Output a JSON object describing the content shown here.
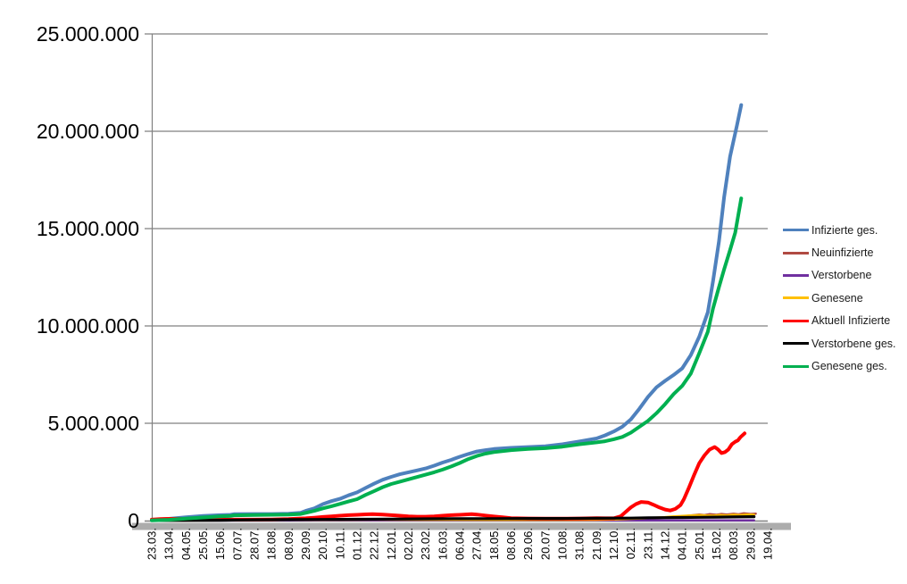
{
  "chart_data": {
    "type": "line",
    "title": "",
    "grid": true,
    "legend_position": "right",
    "x_axis": {
      "labels": [
        "23.03.",
        "13.04.",
        "04.05.",
        "25.05.",
        "15.06.",
        "07.07.",
        "28.07.",
        "18.08.",
        "08.09.",
        "29.09.",
        "20.10.",
        "10.11.",
        "01.12.",
        "22.12.",
        "12.01.",
        "02.02.",
        "23.02.",
        "16.03.",
        "06.04.",
        "27.04.",
        "18.05.",
        "08.06.",
        "29.06.",
        "20.07.",
        "10.08.",
        "31.08.",
        "21.09.",
        "12.10.",
        "02.11.",
        "23.11.",
        "14.12.",
        "04.01.",
        "25.01.",
        "15.02.",
        "08.03.",
        "29.03.",
        "19.04."
      ],
      "label_rotation_deg": 90
    },
    "y_axis": {
      "labels": [
        "0",
        "5.000.000",
        "10.000.000",
        "15.000.000",
        "20.000.000",
        "25.000.000"
      ],
      "min": 0,
      "max": 25000000,
      "gridline_step": 5000000
    },
    "units": "point values are [tick_index, millions]",
    "colors": {
      "gridline": "#808080",
      "axis_shadow_bar": "#ACACAC",
      "axis_text": "#000000"
    },
    "series": [
      {
        "name": "Infizierte ges.",
        "color": "#4F81BD",
        "width": 4,
        "points": [
          [
            0,
            0.03
          ],
          [
            1,
            0.09
          ],
          [
            2,
            0.17
          ],
          [
            3,
            0.24
          ],
          [
            4,
            0.28
          ],
          [
            4.6,
            0.3
          ],
          [
            4.8,
            0.33
          ],
          [
            6,
            0.34
          ],
          [
            7,
            0.34
          ],
          [
            8,
            0.36
          ],
          [
            8.7,
            0.4
          ],
          [
            9,
            0.5
          ],
          [
            9.5,
            0.63
          ],
          [
            10,
            0.85
          ],
          [
            10.5,
            1.0
          ],
          [
            11,
            1.12
          ],
          [
            11.5,
            1.3
          ],
          [
            12,
            1.45
          ],
          [
            12.5,
            1.68
          ],
          [
            13,
            1.9
          ],
          [
            13.5,
            2.1
          ],
          [
            14,
            2.25
          ],
          [
            14.5,
            2.38
          ],
          [
            15,
            2.48
          ],
          [
            15.5,
            2.58
          ],
          [
            16,
            2.68
          ],
          [
            16.5,
            2.82
          ],
          [
            17,
            2.98
          ],
          [
            17.5,
            3.12
          ],
          [
            18,
            3.28
          ],
          [
            18.5,
            3.42
          ],
          [
            19,
            3.55
          ],
          [
            19.5,
            3.62
          ],
          [
            20,
            3.68
          ],
          [
            21,
            3.74
          ],
          [
            22,
            3.78
          ],
          [
            23,
            3.82
          ],
          [
            24,
            3.92
          ],
          [
            25,
            4.07
          ],
          [
            26,
            4.22
          ],
          [
            26.5,
            4.38
          ],
          [
            27,
            4.58
          ],
          [
            27.5,
            4.82
          ],
          [
            28,
            5.2
          ],
          [
            28.5,
            5.75
          ],
          [
            29,
            6.35
          ],
          [
            29.5,
            6.85
          ],
          [
            30,
            7.18
          ],
          [
            30.5,
            7.48
          ],
          [
            31,
            7.82
          ],
          [
            31.5,
            8.5
          ],
          [
            32,
            9.45
          ],
          [
            32.5,
            10.7
          ],
          [
            32.8,
            12.3
          ],
          [
            33.15,
            14.35
          ],
          [
            33.45,
            16.6
          ],
          [
            33.8,
            18.7
          ],
          [
            34.2,
            20.3
          ],
          [
            34.45,
            21.35
          ]
        ]
      },
      {
        "name": "Neuinfizierte",
        "color": "#B04A42",
        "width": 2.5,
        "points": [
          [
            0,
            0.02
          ],
          [
            1,
            0.03
          ],
          [
            2,
            0.02
          ],
          [
            4,
            0.01
          ],
          [
            8,
            0.03
          ],
          [
            11,
            0.04
          ],
          [
            13,
            0.05
          ],
          [
            16,
            0.04
          ],
          [
            20,
            0.02
          ],
          [
            24,
            0.03
          ],
          [
            26,
            0.03
          ],
          [
            27,
            0.06
          ],
          [
            28,
            0.1
          ],
          [
            29,
            0.12
          ],
          [
            30,
            0.15
          ],
          [
            30.5,
            0.19
          ],
          [
            31,
            0.22
          ],
          [
            31.5,
            0.26
          ],
          [
            32,
            0.31
          ],
          [
            32.3,
            0.28
          ],
          [
            32.6,
            0.33
          ],
          [
            33,
            0.3
          ],
          [
            33.3,
            0.34
          ],
          [
            33.6,
            0.31
          ],
          [
            34,
            0.35
          ],
          [
            34.3,
            0.32
          ],
          [
            34.6,
            0.37
          ],
          [
            35,
            0.34
          ],
          [
            35.3,
            0.36
          ]
        ]
      },
      {
        "name": "Verstorbene",
        "color": "#7030A0",
        "width": 2.5,
        "points": [
          [
            0,
            0.005
          ],
          [
            10,
            0.007
          ],
          [
            20,
            0.008
          ],
          [
            30,
            0.01
          ],
          [
            35.2,
            0.012
          ]
        ]
      },
      {
        "name": "Genesene",
        "color": "#FFC000",
        "width": 2.5,
        "points": [
          [
            0,
            0.0
          ],
          [
            4,
            0.01
          ],
          [
            8,
            0.03
          ],
          [
            11,
            0.04
          ],
          [
            13,
            0.05
          ],
          [
            16,
            0.04
          ],
          [
            20,
            0.03
          ],
          [
            24,
            0.03
          ],
          [
            26,
            0.04
          ],
          [
            27,
            0.06
          ],
          [
            28,
            0.09
          ],
          [
            29,
            0.13
          ],
          [
            30,
            0.18
          ],
          [
            30.5,
            0.22
          ],
          [
            31,
            0.24
          ],
          [
            31.5,
            0.26
          ],
          [
            32,
            0.28
          ],
          [
            32.4,
            0.26
          ],
          [
            32.8,
            0.25
          ],
          [
            33.2,
            0.28
          ],
          [
            33.6,
            0.26
          ],
          [
            34,
            0.3
          ],
          [
            34.4,
            0.28
          ],
          [
            34.8,
            0.31
          ],
          [
            35.2,
            0.3
          ]
        ]
      },
      {
        "name": "Aktuell Infizierte",
        "color": "#FF0000",
        "width": 4,
        "points": [
          [
            0,
            0.05
          ],
          [
            0.5,
            0.08
          ],
          [
            1,
            0.09
          ],
          [
            2,
            0.08
          ],
          [
            3,
            0.06
          ],
          [
            4,
            0.05
          ],
          [
            5,
            0.05
          ],
          [
            6,
            0.05
          ],
          [
            7,
            0.06
          ],
          [
            8,
            0.08
          ],
          [
            9,
            0.12
          ],
          [
            9.5,
            0.15
          ],
          [
            10,
            0.19
          ],
          [
            10.5,
            0.22
          ],
          [
            11,
            0.25
          ],
          [
            11.5,
            0.28
          ],
          [
            12,
            0.3
          ],
          [
            12.5,
            0.32
          ],
          [
            12.9,
            0.33
          ],
          [
            13.5,
            0.31
          ],
          [
            14,
            0.28
          ],
          [
            14.5,
            0.25
          ],
          [
            15,
            0.22
          ],
          [
            15.5,
            0.2
          ],
          [
            16,
            0.2
          ],
          [
            16.5,
            0.22
          ],
          [
            17,
            0.25
          ],
          [
            17.5,
            0.28
          ],
          [
            18,
            0.3
          ],
          [
            18.7,
            0.33
          ],
          [
            19,
            0.31
          ],
          [
            19.5,
            0.26
          ],
          [
            20,
            0.21
          ],
          [
            20.5,
            0.17
          ],
          [
            21,
            0.13
          ],
          [
            22,
            0.11
          ],
          [
            23,
            0.1
          ],
          [
            24,
            0.1
          ],
          [
            25,
            0.11
          ],
          [
            26,
            0.13
          ],
          [
            26.5,
            0.12
          ],
          [
            27,
            0.12
          ],
          [
            27.4,
            0.22
          ],
          [
            27.7,
            0.45
          ],
          [
            28,
            0.68
          ],
          [
            28.3,
            0.85
          ],
          [
            28.6,
            0.96
          ],
          [
            29,
            0.93
          ],
          [
            29.3,
            0.82
          ],
          [
            29.6,
            0.7
          ],
          [
            30,
            0.57
          ],
          [
            30.3,
            0.52
          ],
          [
            30.6,
            0.6
          ],
          [
            30.9,
            0.8
          ],
          [
            31.1,
            1.1
          ],
          [
            31.4,
            1.7
          ],
          [
            31.7,
            2.35
          ],
          [
            32,
            2.95
          ],
          [
            32.3,
            3.35
          ],
          [
            32.6,
            3.65
          ],
          [
            32.9,
            3.78
          ],
          [
            33.1,
            3.65
          ],
          [
            33.3,
            3.47
          ],
          [
            33.5,
            3.52
          ],
          [
            33.7,
            3.65
          ],
          [
            33.9,
            3.92
          ],
          [
            34.1,
            4.05
          ],
          [
            34.25,
            4.12
          ],
          [
            34.4,
            4.28
          ],
          [
            34.65,
            4.48
          ]
        ]
      },
      {
        "name": "Verstorbene ges.",
        "color": "#000000",
        "width": 3.2,
        "points": [
          [
            0,
            0.005
          ],
          [
            2,
            0.01
          ],
          [
            4,
            0.02
          ],
          [
            5,
            0.03
          ],
          [
            6,
            0.04
          ],
          [
            8,
            0.05
          ],
          [
            10,
            0.06
          ],
          [
            12,
            0.07
          ],
          [
            14,
            0.08
          ],
          [
            16,
            0.09
          ],
          [
            18,
            0.1
          ],
          [
            20,
            0.1
          ],
          [
            22,
            0.11
          ],
          [
            24,
            0.11
          ],
          [
            26,
            0.12
          ],
          [
            28,
            0.13
          ],
          [
            29,
            0.14
          ],
          [
            30,
            0.15
          ],
          [
            31,
            0.16
          ],
          [
            32,
            0.17
          ],
          [
            33,
            0.18
          ],
          [
            34,
            0.19
          ],
          [
            35.2,
            0.2
          ]
        ]
      },
      {
        "name": "Genesene ges.",
        "color": "#00B050",
        "width": 4,
        "points": [
          [
            0,
            0.01
          ],
          [
            1,
            0.04
          ],
          [
            2,
            0.1
          ],
          [
            3,
            0.16
          ],
          [
            4,
            0.22
          ],
          [
            4.6,
            0.24
          ],
          [
            4.8,
            0.27
          ],
          [
            6,
            0.29
          ],
          [
            7,
            0.3
          ],
          [
            8,
            0.31
          ],
          [
            8.7,
            0.34
          ],
          [
            9,
            0.4
          ],
          [
            9.5,
            0.5
          ],
          [
            10,
            0.63
          ],
          [
            10.5,
            0.74
          ],
          [
            11,
            0.86
          ],
          [
            11.5,
            0.98
          ],
          [
            12,
            1.1
          ],
          [
            12.5,
            1.32
          ],
          [
            13,
            1.52
          ],
          [
            13.5,
            1.72
          ],
          [
            14,
            1.88
          ],
          [
            14.5,
            2.0
          ],
          [
            15,
            2.12
          ],
          [
            15.5,
            2.24
          ],
          [
            16,
            2.36
          ],
          [
            16.5,
            2.48
          ],
          [
            17,
            2.62
          ],
          [
            17.5,
            2.78
          ],
          [
            18,
            2.96
          ],
          [
            18.5,
            3.16
          ],
          [
            19,
            3.32
          ],
          [
            19.5,
            3.44
          ],
          [
            20,
            3.52
          ],
          [
            21,
            3.62
          ],
          [
            22,
            3.68
          ],
          [
            23,
            3.72
          ],
          [
            24,
            3.8
          ],
          [
            25,
            3.92
          ],
          [
            26,
            4.02
          ],
          [
            26.5,
            4.08
          ],
          [
            27,
            4.18
          ],
          [
            27.5,
            4.3
          ],
          [
            28,
            4.52
          ],
          [
            28.5,
            4.82
          ],
          [
            29,
            5.12
          ],
          [
            29.5,
            5.52
          ],
          [
            30,
            5.98
          ],
          [
            30.5,
            6.5
          ],
          [
            31,
            6.92
          ],
          [
            31.5,
            7.55
          ],
          [
            32,
            8.6
          ],
          [
            32.5,
            9.7
          ],
          [
            32.8,
            10.9
          ],
          [
            33.15,
            12.0
          ],
          [
            33.45,
            12.9
          ],
          [
            33.8,
            13.9
          ],
          [
            34.1,
            14.8
          ],
          [
            34.45,
            16.55
          ]
        ]
      }
    ]
  }
}
